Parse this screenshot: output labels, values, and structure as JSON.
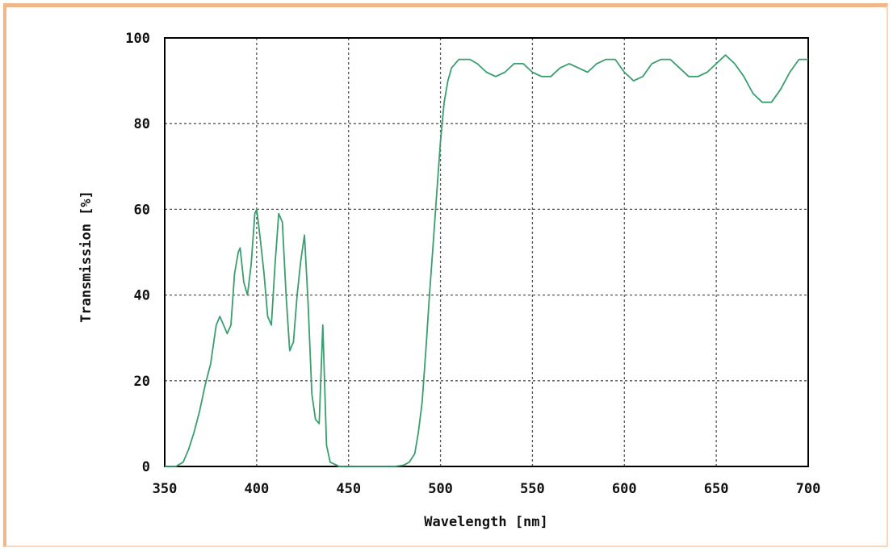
{
  "chart_data": {
    "type": "line",
    "title": "",
    "xlabel": "Wavelength [nm]",
    "ylabel": "Transmission [%]",
    "xlim": [
      350,
      700
    ],
    "ylim": [
      0,
      100
    ],
    "x_ticks": [
      "350",
      "400",
      "450",
      "500",
      "550",
      "600",
      "650",
      "700"
    ],
    "y_ticks": [
      "0",
      "20",
      "40",
      "60",
      "80",
      "100"
    ],
    "grid": true,
    "line_color": "#3a9e6e",
    "series": [
      {
        "x": [
          350,
          356,
          360,
          363,
          366,
          369,
          372,
          375,
          378,
          380,
          382,
          384,
          386,
          388,
          390,
          391,
          393,
          395,
          397,
          399,
          400,
          402,
          404,
          406,
          408,
          410,
          412,
          414,
          416,
          418,
          420,
          422,
          424,
          426,
          428,
          430,
          432,
          434,
          436,
          438,
          440,
          445,
          450,
          460,
          470,
          475,
          480,
          483,
          486,
          488,
          490,
          492,
          494,
          496,
          498,
          500,
          502,
          504,
          506,
          508,
          510,
          512,
          514,
          516,
          520,
          525,
          530,
          535,
          540,
          545,
          550,
          555,
          560,
          565,
          570,
          575,
          580,
          585,
          590,
          595,
          600,
          605,
          610,
          615,
          620,
          625,
          630,
          635,
          640,
          645,
          650,
          655,
          660,
          665,
          670,
          675,
          680,
          685,
          690,
          695,
          700
        ],
        "y": [
          0,
          0,
          1,
          4,
          8,
          13,
          19,
          24,
          33,
          35,
          33,
          31,
          33,
          45,
          50,
          51,
          43,
          40,
          47,
          59,
          60,
          53,
          45,
          35,
          33,
          47,
          59,
          57,
          40,
          27,
          29,
          40,
          48,
          54,
          38,
          17,
          11,
          10,
          33,
          5,
          1,
          0,
          0,
          0,
          0,
          0,
          0.3,
          1,
          3,
          8,
          15,
          27,
          40,
          52,
          64,
          76,
          85,
          90,
          93,
          94,
          95,
          95,
          95,
          95,
          94,
          92,
          91,
          92,
          94,
          94,
          92,
          91,
          91,
          93,
          94,
          93,
          92,
          94,
          95,
          95,
          92,
          90,
          91,
          94,
          95,
          95,
          93,
          91,
          91,
          92,
          94,
          96,
          94,
          91,
          87,
          85,
          85,
          88,
          92,
          95,
          95
        ]
      }
    ]
  }
}
